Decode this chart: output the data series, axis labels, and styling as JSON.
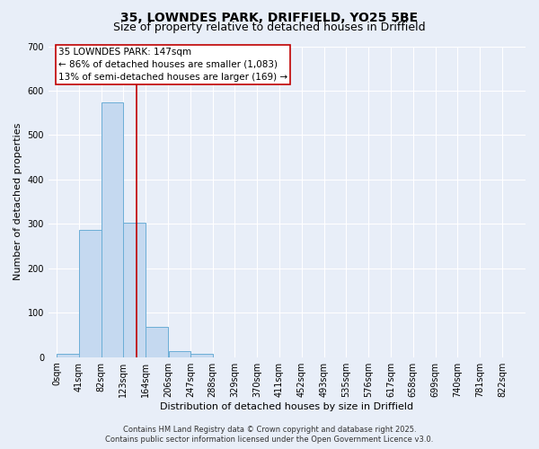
{
  "title": "35, LOWNDES PARK, DRIFFIELD, YO25 5BE",
  "subtitle": "Size of property relative to detached houses in Driffield",
  "xlabel": "Distribution of detached houses by size in Driffield",
  "ylabel": "Number of detached properties",
  "bar_values": [
    7,
    287,
    574,
    303,
    68,
    13,
    8,
    0,
    0,
    0,
    0,
    0,
    0,
    0,
    0,
    0,
    0,
    0,
    0,
    0
  ],
  "bar_left_edges": [
    0,
    41,
    82,
    123,
    164,
    206,
    247,
    288,
    329,
    370,
    411,
    452,
    493,
    535,
    576,
    617,
    658,
    699,
    740,
    781
  ],
  "bin_width": 41,
  "x_tick_labels": [
    "0sqm",
    "41sqm",
    "82sqm",
    "123sqm",
    "164sqm",
    "206sqm",
    "247sqm",
    "288sqm",
    "329sqm",
    "370sqm",
    "411sqm",
    "452sqm",
    "493sqm",
    "535sqm",
    "576sqm",
    "617sqm",
    "658sqm",
    "699sqm",
    "740sqm",
    "781sqm",
    "822sqm"
  ],
  "ylim": [
    0,
    700
  ],
  "yticks": [
    0,
    100,
    200,
    300,
    400,
    500,
    600,
    700
  ],
  "bar_color": "#c5d9f0",
  "bar_edge_color": "#6baed6",
  "property_line_x": 147,
  "property_line_color": "#c00000",
  "annotation_box_color": "#c00000",
  "annotation_line1": "35 LOWNDES PARK: 147sqm",
  "annotation_line2": "← 86% of detached houses are smaller (1,083)",
  "annotation_line3": "13% of semi-detached houses are larger (169) →",
  "footer1": "Contains HM Land Registry data © Crown copyright and database right 2025.",
  "footer2": "Contains public sector information licensed under the Open Government Licence v3.0.",
  "bg_color": "#e8eef8",
  "plot_bg_color": "#e8eef8",
  "grid_color": "#ffffff",
  "title_fontsize": 10,
  "subtitle_fontsize": 9,
  "axis_label_fontsize": 8,
  "tick_fontsize": 7,
  "annotation_fontsize": 7.5,
  "footer_fontsize": 6
}
